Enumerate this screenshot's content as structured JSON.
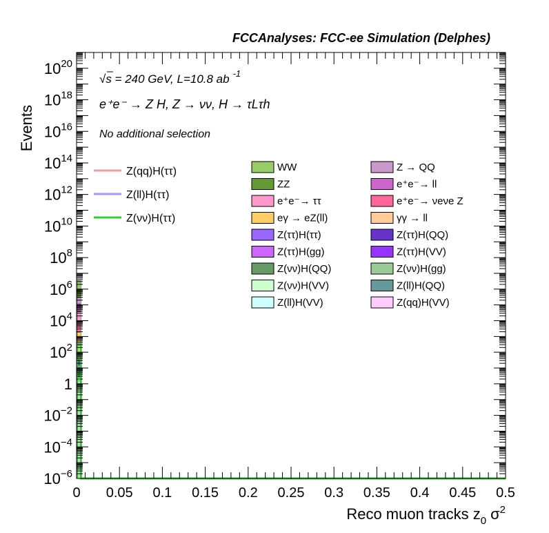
{
  "chart_data": {
    "type": "bar",
    "title": "FCCAnalyses: FCC-ee Simulation (Delphes)",
    "xlabel": "Reco muon tracks z",
    "xlabel_sub": "0",
    "xlabel_tail": "σ",
    "xlabel_sup": "2",
    "ylabel": "Events",
    "xlim": [
      0,
      0.5
    ],
    "ylim": [
      1e-06,
      1e+21
    ],
    "y_scale": "log",
    "x_ticks": [
      "0",
      "0.05",
      "0.1",
      "0.15",
      "0.2",
      "0.25",
      "0.3",
      "0.35",
      "0.4",
      "0.45",
      "0.5"
    ],
    "y_ticks": [
      {
        "base": "10",
        "exp": "−6",
        "value": 1e-06
      },
      {
        "base": "10",
        "exp": "−4",
        "value": 0.0001
      },
      {
        "base": "10",
        "exp": "−2",
        "value": 0.01
      },
      {
        "base": "1",
        "exp": "",
        "value": 1
      },
      {
        "base": "10",
        "exp": "2",
        "value": 100.0
      },
      {
        "base": "10",
        "exp": "4",
        "value": 10000.0
      },
      {
        "base": "10",
        "exp": "6",
        "value": 1000000.0
      },
      {
        "base": "10",
        "exp": "8",
        "value": 100000000.0
      },
      {
        "base": "10",
        "exp": "10",
        "value": 10000000000.0
      },
      {
        "base": "10",
        "exp": "12",
        "value": 1000000000000.0
      },
      {
        "base": "10",
        "exp": "14",
        "value": 100000000000000.0
      },
      {
        "base": "10",
        "exp": "16",
        "value": 1e+16
      },
      {
        "base": "10",
        "exp": "18",
        "value": 1e+18
      },
      {
        "base": "10",
        "exp": "20",
        "value": 1e+20
      }
    ],
    "annotations": {
      "line1_pre": "√s = 240 GeV, L=10.8 ab",
      "line1_sup": "-1",
      "line2": "e⁺e⁻ → Z H, Z → νν, H → τLτh",
      "line3": "No additional selection"
    },
    "grid": false,
    "legend_placement": "top-right",
    "bin_range": [
      0,
      0.005
    ],
    "stack": [
      {
        "name": "Z(qq)H(VV)",
        "color": "#ffccff",
        "value": 1.0
      },
      {
        "name": "Z(ll)H(VV)",
        "color": "#ccffff",
        "value": 0.5
      },
      {
        "name": "Z(νν)H(VV)",
        "color": "#ccffcc",
        "value": 1.0
      },
      {
        "name": "Z(ll)H(QQ)",
        "color": "#669999",
        "value": 1.0
      },
      {
        "name": "Z(νν)H(gg)",
        "color": "#99cc99",
        "value": 1.0
      },
      {
        "name": "Z(νν)H(QQ)",
        "color": "#669966",
        "value": 3.0
      },
      {
        "name": "Z(ττ)H(VV)",
        "color": "#9933ff",
        "value": 3.0
      },
      {
        "name": "Z(ττ)H(gg)",
        "color": "#cc66ff",
        "value": 5.0
      },
      {
        "name": "Z(ττ)H(QQ)",
        "color": "#6633cc",
        "value": 20
      },
      {
        "name": "Z(ττ)H(ττ)",
        "color": "#9966ff",
        "value": 60
      },
      {
        "name": "γγ → ll",
        "color": "#ffcc99",
        "value": 300
      },
      {
        "name": "eγ → eZ(ll)",
        "color": "#ffcc66",
        "value": 1500
      },
      {
        "name": "e⁺e⁻→ νeνe Z",
        "color": "#ff6699",
        "value": 5000
      },
      {
        "name": "e⁺e⁻→ ττ",
        "color": "#ff99cc",
        "value": 30000
      },
      {
        "name": "e⁺e⁻→ ll",
        "color": "#cc66cc",
        "value": 80000
      },
      {
        "name": "Z → QQ",
        "color": "#cc99cc",
        "value": 200000
      },
      {
        "name": "ZZ",
        "color": "#669933",
        "value": 600000
      },
      {
        "name": "WW",
        "color": "#99cc66",
        "value": 2500000
      }
    ],
    "signals": [
      {
        "name": "Z(qq)H(ττ)",
        "color": "#ff9999",
        "value": 40
      },
      {
        "name": "Z(ll)H(ττ)",
        "color": "#9999ff",
        "value": 8
      },
      {
        "name": "Z(νν)H(ττ)",
        "color": "#33cc33",
        "value": 300
      }
    ],
    "legend_signals": [
      "Z(qq)H(ττ)",
      "Z(ll)H(ττ)",
      "Z(νν)H(ττ)"
    ],
    "legend_backgrounds": [
      {
        "name": "WW",
        "color": "#99cc66"
      },
      {
        "name": "Z → QQ",
        "color": "#cc99cc"
      },
      {
        "name": "ZZ",
        "color": "#669933"
      },
      {
        "name": "e⁺e⁻→ ll",
        "color": "#cc66cc"
      },
      {
        "name": "e⁺e⁻→ ττ",
        "color": "#ff99cc"
      },
      {
        "name": "e⁺e⁻→ νeνe Z",
        "color": "#ff6699"
      },
      {
        "name": "eγ → eZ(ll)",
        "color": "#ffcc66"
      },
      {
        "name": "γγ → ll",
        "color": "#ffcc99"
      },
      {
        "name": "Z(ττ)H(ττ)",
        "color": "#9966ff"
      },
      {
        "name": "Z(ττ)H(QQ)",
        "color": "#6633cc"
      },
      {
        "name": "Z(ττ)H(gg)",
        "color": "#cc66ff"
      },
      {
        "name": "Z(ττ)H(VV)",
        "color": "#9933ff"
      },
      {
        "name": "Z(νν)H(QQ)",
        "color": "#669966"
      },
      {
        "name": "Z(νν)H(gg)",
        "color": "#99cc99"
      },
      {
        "name": "Z(νν)H(VV)",
        "color": "#ccffcc"
      },
      {
        "name": "Z(ll)H(QQ)",
        "color": "#669999"
      },
      {
        "name": "Z(ll)H(VV)",
        "color": "#ccffff"
      },
      {
        "name": "Z(qq)H(VV)",
        "color": "#ffccff"
      }
    ]
  }
}
